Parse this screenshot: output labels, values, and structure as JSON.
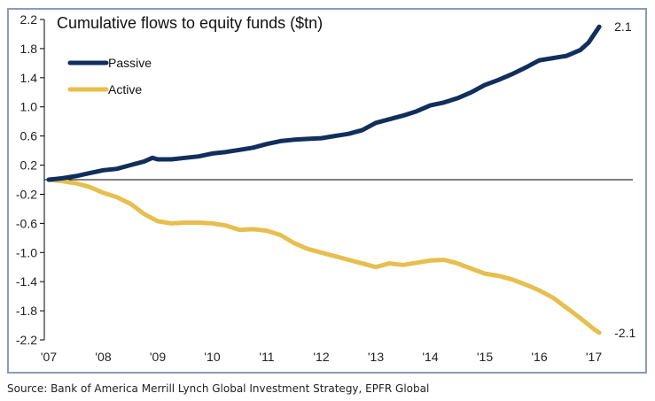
{
  "chart_data": {
    "type": "line",
    "title": "Cumulative flows to equity funds ($tn)",
    "xlabel": "",
    "ylabel": "",
    "x_ticks": [
      "'07",
      "'08",
      "'09",
      "'10",
      "'11",
      "'12",
      "'13",
      "'14",
      "'15",
      "'16",
      "'17"
    ],
    "x_range": [
      2007,
      2017.15
    ],
    "y_ticks": [
      "2.2",
      "1.8",
      "1.4",
      "1.0",
      "0.6",
      "0.2",
      "-0.2",
      "-0.6",
      "-1.0",
      "-1.4",
      "-1.8",
      "-2.2"
    ],
    "ylim": [
      -2.2,
      2.2
    ],
    "zero_line": true,
    "grid": false,
    "legend_position": "top-left",
    "series": [
      {
        "name": "Passive",
        "color": "#112f5c",
        "end_label": "2.1",
        "x": [
          2007.0,
          2007.25,
          2007.5,
          2007.75,
          2008.0,
          2008.25,
          2008.5,
          2008.75,
          2008.9,
          2009.0,
          2009.25,
          2009.5,
          2009.75,
          2010.0,
          2010.25,
          2010.5,
          2010.75,
          2011.0,
          2011.25,
          2011.5,
          2011.75,
          2012.0,
          2012.25,
          2012.5,
          2012.75,
          2013.0,
          2013.25,
          2013.5,
          2013.75,
          2014.0,
          2014.25,
          2014.5,
          2014.75,
          2015.0,
          2015.25,
          2015.5,
          2015.75,
          2016.0,
          2016.25,
          2016.5,
          2016.75,
          2016.9,
          2017.1
        ],
        "values": [
          0.0,
          0.02,
          0.05,
          0.09,
          0.13,
          0.15,
          0.2,
          0.25,
          0.3,
          0.28,
          0.28,
          0.3,
          0.32,
          0.36,
          0.38,
          0.41,
          0.44,
          0.49,
          0.53,
          0.55,
          0.56,
          0.57,
          0.6,
          0.63,
          0.68,
          0.78,
          0.83,
          0.88,
          0.94,
          1.02,
          1.06,
          1.12,
          1.2,
          1.3,
          1.37,
          1.45,
          1.54,
          1.64,
          1.67,
          1.7,
          1.78,
          1.88,
          2.1
        ]
      },
      {
        "name": "Active",
        "color": "#e6bf4f",
        "end_label": "-2.1",
        "x": [
          2007.0,
          2007.25,
          2007.5,
          2007.75,
          2008.0,
          2008.25,
          2008.5,
          2008.75,
          2009.0,
          2009.25,
          2009.5,
          2009.75,
          2010.0,
          2010.25,
          2010.5,
          2010.75,
          2011.0,
          2011.25,
          2011.5,
          2011.75,
          2012.0,
          2012.25,
          2012.5,
          2012.75,
          2013.0,
          2013.25,
          2013.5,
          2013.75,
          2014.0,
          2014.25,
          2014.5,
          2014.75,
          2015.0,
          2015.25,
          2015.5,
          2015.75,
          2016.0,
          2016.25,
          2016.5,
          2016.75,
          2017.0,
          2017.1
        ],
        "values": [
          0.0,
          -0.02,
          -0.05,
          -0.1,
          -0.18,
          -0.24,
          -0.33,
          -0.47,
          -0.57,
          -0.6,
          -0.59,
          -0.59,
          -0.6,
          -0.63,
          -0.69,
          -0.68,
          -0.7,
          -0.76,
          -0.87,
          -0.95,
          -1.0,
          -1.05,
          -1.1,
          -1.15,
          -1.2,
          -1.15,
          -1.17,
          -1.14,
          -1.11,
          -1.1,
          -1.15,
          -1.22,
          -1.29,
          -1.32,
          -1.37,
          -1.44,
          -1.52,
          -1.62,
          -1.76,
          -1.9,
          -2.05,
          -2.1
        ]
      }
    ]
  },
  "source": "Source: Bank of America  Merrill Lynch Global Investment Strategy, EPFR Global"
}
